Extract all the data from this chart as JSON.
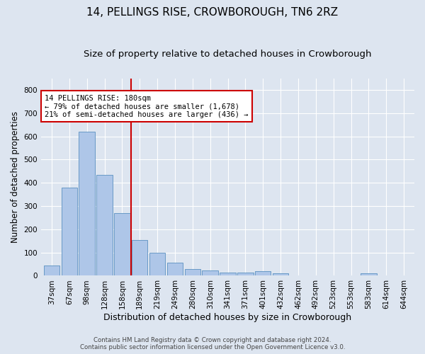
{
  "title": "14, PELLINGS RISE, CROWBOROUGH, TN6 2RZ",
  "subtitle": "Size of property relative to detached houses in Crowborough",
  "xlabel": "Distribution of detached houses by size in Crowborough",
  "ylabel": "Number of detached properties",
  "footer_line1": "Contains HM Land Registry data © Crown copyright and database right 2024.",
  "footer_line2": "Contains public sector information licensed under the Open Government Licence v3.0.",
  "categories": [
    "37sqm",
    "67sqm",
    "98sqm",
    "128sqm",
    "158sqm",
    "189sqm",
    "219sqm",
    "249sqm",
    "280sqm",
    "310sqm",
    "341sqm",
    "371sqm",
    "401sqm",
    "432sqm",
    "462sqm",
    "492sqm",
    "523sqm",
    "553sqm",
    "583sqm",
    "614sqm",
    "644sqm"
  ],
  "values": [
    45,
    378,
    620,
    435,
    270,
    155,
    100,
    55,
    30,
    22,
    15,
    15,
    20,
    10,
    2,
    0,
    0,
    0,
    12,
    0,
    2
  ],
  "bar_color": "#aec6e8",
  "bar_edge_color": "#5a90c0",
  "annotation_line1": "14 PELLINGS RISE: 180sqm",
  "annotation_line2": "← 79% of detached houses are smaller (1,678)",
  "annotation_line3": "21% of semi-detached houses are larger (436) →",
  "annotation_box_color": "#ffffff",
  "annotation_box_edge_color": "#cc0000",
  "vline_color": "#cc0000",
  "vline_x_index": 4.5,
  "ylim": [
    0,
    850
  ],
  "yticks": [
    0,
    100,
    200,
    300,
    400,
    500,
    600,
    700,
    800
  ],
  "background_color": "#dde5f0",
  "plot_background_color": "#dde5f0",
  "title_fontsize": 11,
  "subtitle_fontsize": 9.5,
  "tick_fontsize": 7.5,
  "ylabel_fontsize": 8.5,
  "xlabel_fontsize": 9
}
